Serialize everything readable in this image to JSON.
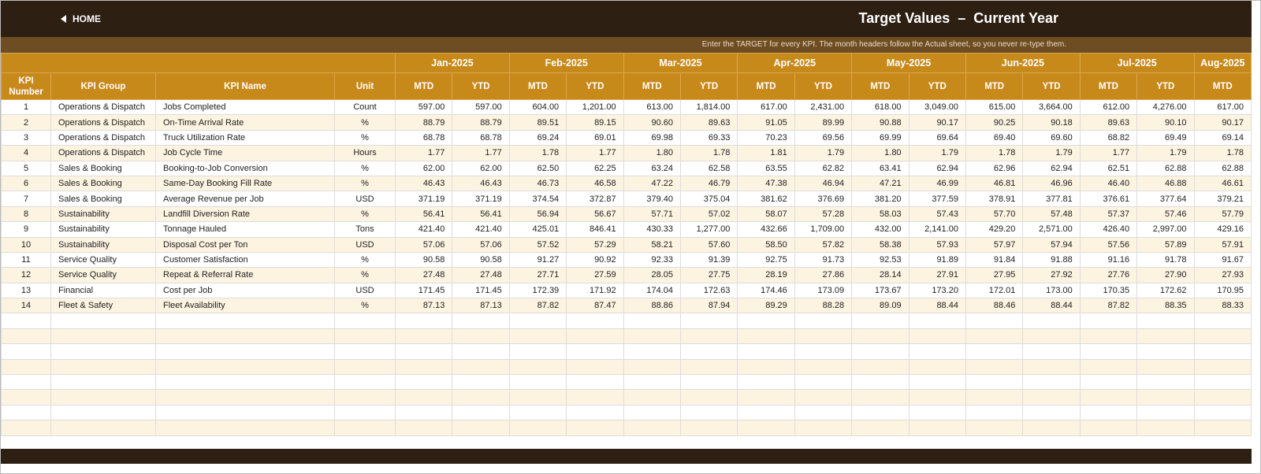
{
  "header": {
    "home": "HOME",
    "title": "Target Values  –  Current Year",
    "note": "Enter the TARGET for every KPI. The month headers follow the Actual sheet, so you never re-type them."
  },
  "table": {
    "months": [
      "Jan-2025",
      "Feb-2025",
      "Mar-2025",
      "Apr-2025",
      "May-2025",
      "Jun-2025",
      "Jul-2025",
      "Aug-2025"
    ],
    "columns": [
      "KPI Number",
      "KPI Group",
      "KPI Name",
      "Unit",
      "MTD",
      "YTD",
      "MTD",
      "YTD",
      "MTD",
      "YTD",
      "MTD",
      "YTD",
      "MTD",
      "YTD",
      "MTD",
      "YTD",
      "MTD",
      "YTD",
      "MTD"
    ],
    "rows": [
      [
        1,
        "Operations & Dispatch",
        "Jobs Completed",
        "Count",
        "597.00",
        "597.00",
        "604.00",
        "1,201.00",
        "613.00",
        "1,814.00",
        "617.00",
        "2,431.00",
        "618.00",
        "3,049.00",
        "615.00",
        "3,664.00",
        "612.00",
        "4,276.00",
        "617.00"
      ],
      [
        2,
        "Operations & Dispatch",
        "On-Time Arrival Rate",
        "%",
        "88.79",
        "88.79",
        "89.51",
        "89.15",
        "90.60",
        "89.63",
        "91.05",
        "89.99",
        "90.88",
        "90.17",
        "90.25",
        "90.18",
        "89.63",
        "90.10",
        "90.17"
      ],
      [
        3,
        "Operations & Dispatch",
        "Truck Utilization Rate",
        "%",
        "68.78",
        "68.78",
        "69.24",
        "69.01",
        "69.98",
        "69.33",
        "70.23",
        "69.56",
        "69.99",
        "69.64",
        "69.40",
        "69.60",
        "68.82",
        "69.49",
        "69.14"
      ],
      [
        4,
        "Operations & Dispatch",
        "Job Cycle Time",
        "Hours",
        "1.77",
        "1.77",
        "1.78",
        "1.77",
        "1.80",
        "1.78",
        "1.81",
        "1.79",
        "1.80",
        "1.79",
        "1.78",
        "1.79",
        "1.77",
        "1.79",
        "1.78"
      ],
      [
        5,
        "Sales & Booking",
        "Booking-to-Job Conversion",
        "%",
        "62.00",
        "62.00",
        "62.50",
        "62.25",
        "63.24",
        "62.58",
        "63.55",
        "62.82",
        "63.41",
        "62.94",
        "62.96",
        "62.94",
        "62.51",
        "62.88",
        "62.88"
      ],
      [
        6,
        "Sales & Booking",
        "Same-Day Booking Fill Rate",
        "%",
        "46.43",
        "46.43",
        "46.73",
        "46.58",
        "47.22",
        "46.79",
        "47.38",
        "46.94",
        "47.21",
        "46.99",
        "46.81",
        "46.96",
        "46.40",
        "46.88",
        "46.61"
      ],
      [
        7,
        "Sales & Booking",
        "Average Revenue per Job",
        "USD",
        "371.19",
        "371.19",
        "374.54",
        "372.87",
        "379.40",
        "375.04",
        "381.62",
        "376.69",
        "381.20",
        "377.59",
        "378.91",
        "377.81",
        "376.61",
        "377.64",
        "379.21"
      ],
      [
        8,
        "Sustainability",
        "Landfill Diversion Rate",
        "%",
        "56.41",
        "56.41",
        "56.94",
        "56.67",
        "57.71",
        "57.02",
        "58.07",
        "57.28",
        "58.03",
        "57.43",
        "57.70",
        "57.48",
        "57.37",
        "57.46",
        "57.79"
      ],
      [
        9,
        "Sustainability",
        "Tonnage Hauled",
        "Tons",
        "421.40",
        "421.40",
        "425.01",
        "846.41",
        "430.33",
        "1,277.00",
        "432.66",
        "1,709.00",
        "432.00",
        "2,141.00",
        "429.20",
        "2,571.00",
        "426.40",
        "2,997.00",
        "429.16"
      ],
      [
        10,
        "Sustainability",
        "Disposal Cost per Ton",
        "USD",
        "57.06",
        "57.06",
        "57.52",
        "57.29",
        "58.21",
        "57.60",
        "58.50",
        "57.82",
        "58.38",
        "57.93",
        "57.97",
        "57.94",
        "57.56",
        "57.89",
        "57.91"
      ],
      [
        11,
        "Service Quality",
        "Customer Satisfaction",
        "%",
        "90.58",
        "90.58",
        "91.27",
        "90.92",
        "92.33",
        "91.39",
        "92.75",
        "91.73",
        "92.53",
        "91.89",
        "91.84",
        "91.88",
        "91.16",
        "91.78",
        "91.67"
      ],
      [
        12,
        "Service Quality",
        "Repeat & Referral Rate",
        "%",
        "27.48",
        "27.48",
        "27.71",
        "27.59",
        "28.05",
        "27.75",
        "28.19",
        "27.86",
        "28.14",
        "27.91",
        "27.95",
        "27.92",
        "27.76",
        "27.90",
        "27.93"
      ],
      [
        13,
        "Financial",
        "Cost per Job",
        "USD",
        "171.45",
        "171.45",
        "172.39",
        "171.92",
        "174.04",
        "172.63",
        "174.46",
        "173.09",
        "173.67",
        "173.20",
        "172.01",
        "173.00",
        "170.35",
        "172.62",
        "170.95"
      ],
      [
        14,
        "Fleet & Safety",
        "Fleet Availability",
        "%",
        "87.13",
        "87.13",
        "87.82",
        "87.47",
        "88.86",
        "87.94",
        "89.29",
        "88.28",
        "89.09",
        "88.44",
        "88.46",
        "88.44",
        "87.82",
        "88.35",
        "88.33"
      ]
    ]
  }
}
